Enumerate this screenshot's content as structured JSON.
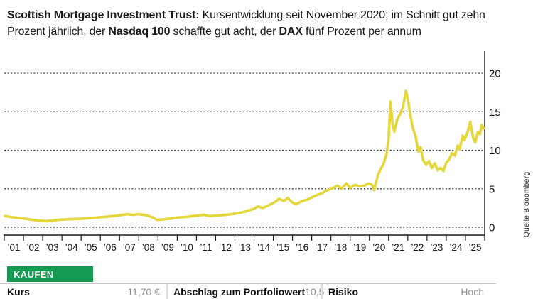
{
  "header": {
    "segments": [
      {
        "text": "Scottish Mortgage Investment Trust: ",
        "bold": true
      },
      {
        "text": "Kursentwicklung seit November 2020; im Schnitt gut zehn Prozent jährlich, der ",
        "bold": false
      },
      {
        "text": "Nasdaq 100",
        "bold": true
      },
      {
        "text": " schaffte gut acht, der ",
        "bold": false
      },
      {
        "text": "DAX",
        "bold": true
      },
      {
        "text": " fünf Prozent per annum",
        "bold": false
      }
    ]
  },
  "chart_data": {
    "type": "line",
    "title": "Scottish Mortgage Investment Trust — Kursentwicklung",
    "x_tick_labels": [
      "’01",
      "’02",
      "’03",
      "’04",
      "’05",
      "’06",
      "’07",
      "’08",
      "’09",
      "’10",
      "’11",
      "’12",
      "’13",
      "’14",
      "’15",
      "’16",
      "’17",
      "’18",
      "’19",
      "’20",
      "’21",
      "’22",
      "’23",
      "’24",
      "’25"
    ],
    "y_ticks": [
      0,
      5,
      10,
      15,
      20
    ],
    "ylim": [
      -1.1,
      22.5
    ],
    "x_range_years": [
      2001,
      2026
    ],
    "grid": "horizontal-dashed",
    "legend": "none",
    "line_color": "#e3d73c",
    "grid_color": "#3a3a3a",
    "axis_color": "#1a1a1a",
    "source": "Quelle:Blooomberg",
    "series": [
      {
        "name": "Scottish Mortgage Investment Trust (Kurs, EUR)",
        "points": [
          [
            2001.05,
            1.45
          ],
          [
            2001.4,
            1.3
          ],
          [
            2001.8,
            1.2
          ],
          [
            2002.1,
            1.1
          ],
          [
            2002.5,
            0.95
          ],
          [
            2002.9,
            0.85
          ],
          [
            2003.2,
            0.8
          ],
          [
            2003.6,
            0.9
          ],
          [
            2004.0,
            1.0
          ],
          [
            2004.5,
            1.05
          ],
          [
            2005.0,
            1.1
          ],
          [
            2005.5,
            1.2
          ],
          [
            2006.0,
            1.3
          ],
          [
            2006.5,
            1.4
          ],
          [
            2007.0,
            1.55
          ],
          [
            2007.4,
            1.7
          ],
          [
            2007.7,
            1.6
          ],
          [
            2008.0,
            1.7
          ],
          [
            2008.4,
            1.55
          ],
          [
            2008.7,
            1.3
          ],
          [
            2008.95,
            0.95
          ],
          [
            2009.2,
            1.0
          ],
          [
            2009.6,
            1.1
          ],
          [
            2010.0,
            1.25
          ],
          [
            2010.5,
            1.35
          ],
          [
            2011.0,
            1.5
          ],
          [
            2011.4,
            1.6
          ],
          [
            2011.7,
            1.45
          ],
          [
            2012.0,
            1.5
          ],
          [
            2012.5,
            1.6
          ],
          [
            2013.0,
            1.75
          ],
          [
            2013.5,
            2.0
          ],
          [
            2014.0,
            2.4
          ],
          [
            2014.2,
            2.7
          ],
          [
            2014.45,
            2.5
          ],
          [
            2014.8,
            2.9
          ],
          [
            2015.1,
            3.3
          ],
          [
            2015.3,
            3.7
          ],
          [
            2015.55,
            3.4
          ],
          [
            2015.75,
            3.8
          ],
          [
            2016.0,
            3.2
          ],
          [
            2016.2,
            3.0
          ],
          [
            2016.5,
            3.4
          ],
          [
            2016.8,
            3.6
          ],
          [
            2017.1,
            4.0
          ],
          [
            2017.5,
            4.4
          ],
          [
            2017.8,
            4.8
          ],
          [
            2018.1,
            5.1
          ],
          [
            2018.35,
            5.4
          ],
          [
            2018.55,
            5.0
          ],
          [
            2018.8,
            5.7
          ],
          [
            2019.0,
            5.1
          ],
          [
            2019.25,
            5.5
          ],
          [
            2019.5,
            5.3
          ],
          [
            2019.75,
            5.4
          ],
          [
            2019.95,
            5.7
          ],
          [
            2020.15,
            5.5
          ],
          [
            2020.25,
            4.8
          ],
          [
            2020.45,
            6.8
          ],
          [
            2020.6,
            7.6
          ],
          [
            2020.75,
            8.3
          ],
          [
            2020.9,
            9.6
          ],
          [
            2021.0,
            11.5
          ],
          [
            2021.1,
            16.3
          ],
          [
            2021.2,
            13.5
          ],
          [
            2021.3,
            12.4
          ],
          [
            2021.45,
            14.0
          ],
          [
            2021.6,
            14.7
          ],
          [
            2021.75,
            15.6
          ],
          [
            2021.9,
            17.7
          ],
          [
            2022.0,
            16.8
          ],
          [
            2022.1,
            15.0
          ],
          [
            2022.25,
            13.0
          ],
          [
            2022.4,
            11.8
          ],
          [
            2022.55,
            9.8
          ],
          [
            2022.65,
            10.4
          ],
          [
            2022.8,
            8.7
          ],
          [
            2022.95,
            8.1
          ],
          [
            2023.1,
            8.6
          ],
          [
            2023.25,
            7.7
          ],
          [
            2023.4,
            8.3
          ],
          [
            2023.55,
            7.4
          ],
          [
            2023.7,
            7.7
          ],
          [
            2023.85,
            7.3
          ],
          [
            2024.0,
            8.4
          ],
          [
            2024.15,
            8.8
          ],
          [
            2024.3,
            9.6
          ],
          [
            2024.45,
            9.3
          ],
          [
            2024.6,
            10.6
          ],
          [
            2024.7,
            10.1
          ],
          [
            2024.85,
            11.9
          ],
          [
            2024.95,
            11.3
          ],
          [
            2025.1,
            12.3
          ],
          [
            2025.25,
            13.7
          ],
          [
            2025.4,
            11.6
          ],
          [
            2025.5,
            11.0
          ],
          [
            2025.65,
            12.4
          ],
          [
            2025.75,
            12.1
          ],
          [
            2025.85,
            13.3
          ],
          [
            2025.95,
            12.8
          ]
        ]
      }
    ]
  },
  "rating": {
    "label": "KAUFEN",
    "color": "#149a51"
  },
  "stats": [
    {
      "label": "Kurs",
      "value": "11,70 €"
    },
    {
      "label": "Abschlag zum Portfoliowert",
      "value": "10,5 %"
    },
    {
      "label": "Risiko",
      "value": "Hoch"
    }
  ]
}
